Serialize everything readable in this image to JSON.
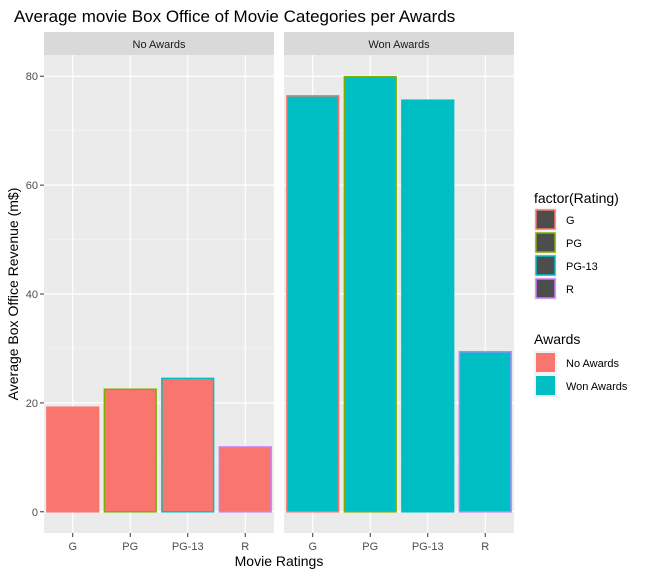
{
  "chart_data": {
    "type": "bar",
    "title": "Average movie Box Office of Movie Categories per Awards",
    "xlabel": "Movie Ratings",
    "ylabel": "Average Box Office Revenue (m$)",
    "categories": [
      "G",
      "PG",
      "PG-13",
      "R"
    ],
    "ylim": [
      -3.9,
      83.9
    ],
    "y_ticks": [
      0,
      20,
      40,
      60,
      80
    ],
    "grid": true,
    "facets": [
      {
        "label": "No Awards",
        "values": [
          19.2,
          22.5,
          24.5,
          11.9
        ]
      },
      {
        "label": "Won Awards",
        "values": [
          76.4,
          79.9,
          75.6,
          29.4
        ]
      }
    ],
    "fill_legend": {
      "title": "Awards",
      "entries": [
        {
          "label": "No Awards",
          "color": "#F8766D"
        },
        {
          "label": "Won Awards",
          "color": "#00BFC4"
        }
      ]
    },
    "color_legend": {
      "title": "factor(Rating)",
      "entries": [
        {
          "label": "G",
          "color": "#F8766D"
        },
        {
          "label": "PG",
          "color": "#7CAE00"
        },
        {
          "label": "PG-13",
          "color": "#00BFC4"
        },
        {
          "label": "R",
          "color": "#C77CFF"
        }
      ]
    },
    "legend_position": "right"
  }
}
